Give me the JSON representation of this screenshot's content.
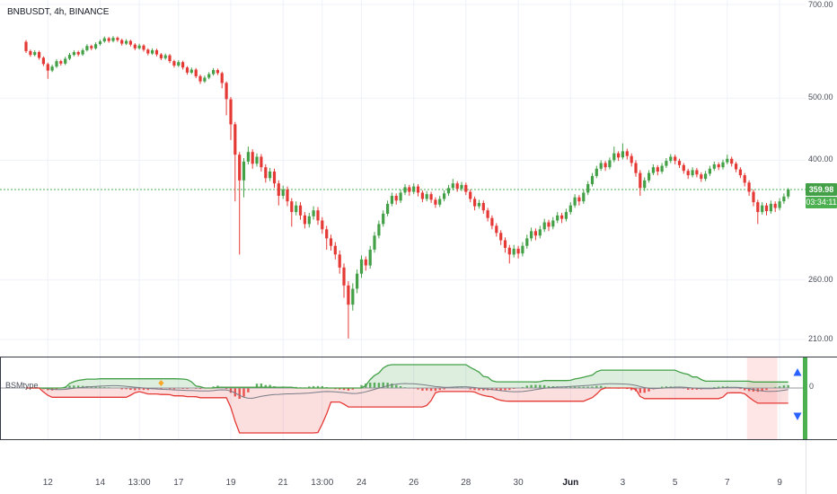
{
  "meta": {
    "title": "BNBUSDT, 4h, BINANCE"
  },
  "colors": {
    "up": "#43a047",
    "down": "#e53935",
    "accent": "#4caf50",
    "blue": "#2962ff",
    "grid": "#eef1f8",
    "zero_line": "#9598a1",
    "signal": "#787b86",
    "pink_band": "rgba(255,99,99,0.16)",
    "green_fill": "rgba(67,160,71,0.18)",
    "red_fill": "rgba(229,57,53,0.16)",
    "marker_yellow": "#f9a825"
  },
  "price_axis": {
    "labels": [
      {
        "text": "700.00",
        "price": 700
      },
      {
        "text": "500.00",
        "price": 500
      },
      {
        "text": "400.00",
        "price": 400
      },
      {
        "text": "260.00",
        "price": 260
      },
      {
        "text": "210.00",
        "price": 210
      }
    ],
    "current": {
      "text": "359.98",
      "price": 359.98,
      "countdown": "03:34:11"
    }
  },
  "time_axis": {
    "labels": [
      {
        "text": "12",
        "i": 5
      },
      {
        "text": "14",
        "i": 17
      },
      {
        "text": "13:00",
        "i": 26
      },
      {
        "text": "17",
        "i": 35
      },
      {
        "text": "19",
        "i": 47
      },
      {
        "text": "21",
        "i": 59
      },
      {
        "text": "13:00",
        "i": 68
      },
      {
        "text": "24",
        "i": 77
      },
      {
        "text": "26",
        "i": 89
      },
      {
        "text": "28",
        "i": 101
      },
      {
        "text": "30",
        "i": 113
      },
      {
        "text": "Jun",
        "i": 125,
        "month": true
      },
      {
        "text": "3",
        "i": 137
      },
      {
        "text": "5",
        "i": 149
      },
      {
        "text": "7",
        "i": 161
      },
      {
        "text": "9",
        "i": 173
      }
    ]
  },
  "indicator": {
    "label": "BSMtype",
    "zero_label": "0",
    "highlight_band": {
      "from_index": 165.5,
      "to_index": 172.5
    },
    "marker_index": 31
  },
  "chart_data": {
    "type": "candlestick",
    "symbol": "BNBUSDT",
    "interval": "4h",
    "exchange": "BINANCE",
    "price_scale": "log",
    "last_price": 359.98,
    "candles": [
      [
        612,
        616,
        588,
        592
      ],
      [
        592,
        595,
        580,
        584
      ],
      [
        584,
        594,
        581,
        590
      ],
      [
        590,
        593,
        574,
        578
      ],
      [
        578,
        581,
        561,
        565
      ],
      [
        565,
        568,
        536,
        552
      ],
      [
        552,
        564,
        549,
        560
      ],
      [
        560,
        575,
        557,
        571
      ],
      [
        571,
        574,
        562,
        566
      ],
      [
        566,
        580,
        563,
        576
      ],
      [
        576,
        588,
        573,
        584
      ],
      [
        584,
        594,
        581,
        590
      ],
      [
        590,
        593,
        581,
        585
      ],
      [
        585,
        598,
        582,
        594
      ],
      [
        594,
        607,
        591,
        603
      ],
      [
        603,
        606,
        594,
        598
      ],
      [
        598,
        611,
        595,
        607
      ],
      [
        607,
        617,
        604,
        613
      ],
      [
        613,
        624,
        610,
        620
      ],
      [
        620,
        623,
        610,
        614
      ],
      [
        614,
        625,
        611,
        621
      ],
      [
        621,
        624,
        612,
        616
      ],
      [
        616,
        619,
        604,
        608
      ],
      [
        608,
        618,
        605,
        614
      ],
      [
        614,
        617,
        602,
        606
      ],
      [
        606,
        609,
        594,
        598
      ],
      [
        598,
        608,
        595,
        604
      ],
      [
        604,
        607,
        591,
        595
      ],
      [
        595,
        598,
        583,
        587
      ],
      [
        587,
        598,
        584,
        594
      ],
      [
        594,
        597,
        581,
        585
      ],
      [
        585,
        588,
        573,
        577
      ],
      [
        577,
        587,
        574,
        583
      ],
      [
        583,
        586,
        567,
        571
      ],
      [
        571,
        574,
        558,
        562
      ],
      [
        562,
        573,
        559,
        569
      ],
      [
        569,
        572,
        554,
        558
      ],
      [
        558,
        561,
        544,
        548
      ],
      [
        548,
        558,
        545,
        554
      ],
      [
        554,
        557,
        537,
        541
      ],
      [
        541,
        544,
        526,
        531
      ],
      [
        531,
        542,
        528,
        538
      ],
      [
        538,
        549,
        535,
        545
      ],
      [
        545,
        557,
        542,
        553
      ],
      [
        553,
        556,
        543,
        547
      ],
      [
        547,
        550,
        518,
        528
      ],
      [
        528,
        531,
        470,
        498
      ],
      [
        498,
        502,
        430,
        455
      ],
      [
        455,
        459,
        345,
        408
      ],
      [
        408,
        412,
        285,
        372
      ],
      [
        372,
        403,
        350,
        398
      ],
      [
        398,
        420,
        394,
        412
      ],
      [
        412,
        416,
        388,
        395
      ],
      [
        395,
        410,
        391,
        405
      ],
      [
        405,
        409,
        384,
        390
      ],
      [
        390,
        394,
        369,
        375
      ],
      [
        375,
        389,
        371,
        384
      ],
      [
        384,
        388,
        362,
        368
      ],
      [
        368,
        372,
        340,
        352
      ],
      [
        352,
        365,
        348,
        360
      ],
      [
        360,
        364,
        339,
        345
      ],
      [
        345,
        349,
        315,
        332
      ],
      [
        332,
        345,
        328,
        340
      ],
      [
        340,
        344,
        323,
        328
      ],
      [
        328,
        332,
        313,
        318
      ],
      [
        318,
        331,
        314,
        327
      ],
      [
        327,
        339,
        323,
        334
      ],
      [
        334,
        338,
        317,
        322
      ],
      [
        322,
        326,
        307,
        312
      ],
      [
        312,
        316,
        290,
        302
      ],
      [
        302,
        306,
        289,
        294
      ],
      [
        294,
        298,
        280,
        285
      ],
      [
        285,
        289,
        266,
        272
      ],
      [
        272,
        276,
        244,
        255
      ],
      [
        255,
        259,
        210.7,
        238
      ],
      [
        238,
        257,
        233,
        252
      ],
      [
        252,
        270,
        248,
        266
      ],
      [
        266,
        284,
        262,
        280
      ],
      [
        280,
        283,
        269,
        274
      ],
      [
        274,
        294,
        271,
        290
      ],
      [
        290,
        309,
        287,
        305
      ],
      [
        305,
        322,
        302,
        318
      ],
      [
        318,
        334,
        315,
        330
      ],
      [
        330,
        346,
        327,
        342
      ],
      [
        342,
        356,
        339,
        352
      ],
      [
        352,
        355,
        341,
        346
      ],
      [
        346,
        360,
        343,
        356
      ],
      [
        356,
        367,
        353,
        363
      ],
      [
        363,
        366,
        352,
        357
      ],
      [
        357,
        368,
        354,
        364
      ],
      [
        364,
        367,
        351,
        356
      ],
      [
        356,
        359,
        344,
        348
      ],
      [
        348,
        358,
        345,
        354
      ],
      [
        354,
        357,
        343,
        347
      ],
      [
        347,
        350,
        337,
        341
      ],
      [
        341,
        352,
        338,
        348
      ],
      [
        348,
        359,
        345,
        355
      ],
      [
        355,
        366,
        352,
        362
      ],
      [
        362,
        374,
        359,
        368
      ],
      [
        368,
        371,
        357,
        361
      ],
      [
        361,
        370,
        358,
        366
      ],
      [
        366,
        369,
        353,
        357
      ],
      [
        357,
        360,
        344,
        348
      ],
      [
        348,
        351,
        334,
        339
      ],
      [
        339,
        347,
        336,
        343
      ],
      [
        343,
        346,
        330,
        334
      ],
      [
        334,
        337,
        321,
        325
      ],
      [
        325,
        328,
        312,
        316
      ],
      [
        316,
        319,
        304,
        308
      ],
      [
        308,
        311,
        295,
        300
      ],
      [
        300,
        303,
        287,
        292
      ],
      [
        292,
        295,
        276,
        285
      ],
      [
        285,
        295,
        282,
        291
      ],
      [
        291,
        294,
        281,
        286
      ],
      [
        286,
        298,
        283,
        294
      ],
      [
        294,
        306,
        291,
        302
      ],
      [
        302,
        314,
        299,
        310
      ],
      [
        310,
        313,
        300,
        305
      ],
      [
        305,
        316,
        302,
        312
      ],
      [
        312,
        324,
        309,
        320
      ],
      [
        320,
        323,
        310,
        315
      ],
      [
        315,
        326,
        312,
        322
      ],
      [
        322,
        332,
        319,
        328
      ],
      [
        328,
        331,
        319,
        324
      ],
      [
        324,
        336,
        321,
        332
      ],
      [
        332,
        344,
        329,
        340
      ],
      [
        340,
        354,
        337,
        350
      ],
      [
        350,
        353,
        340,
        345
      ],
      [
        345,
        360,
        342,
        356
      ],
      [
        356,
        371,
        353,
        367
      ],
      [
        367,
        382,
        364,
        378
      ],
      [
        378,
        392,
        375,
        388
      ],
      [
        388,
        400,
        385,
        396
      ],
      [
        396,
        399,
        385,
        390
      ],
      [
        390,
        404,
        387,
        400
      ],
      [
        400,
        420,
        397,
        410
      ],
      [
        410,
        413,
        399,
        404
      ],
      [
        404,
        425,
        401,
        413
      ],
      [
        413,
        417,
        401,
        406
      ],
      [
        406,
        410,
        391,
        396
      ],
      [
        396,
        400,
        377,
        382
      ],
      [
        382,
        386,
        352,
        362
      ],
      [
        362,
        376,
        358,
        372
      ],
      [
        372,
        386,
        369,
        382
      ],
      [
        382,
        394,
        379,
        390
      ],
      [
        390,
        393,
        379,
        384
      ],
      [
        384,
        396,
        381,
        392
      ],
      [
        392,
        403,
        389,
        399
      ],
      [
        399,
        409,
        396,
        405
      ],
      [
        405,
        408,
        394,
        399
      ],
      [
        399,
        402,
        389,
        393
      ],
      [
        393,
        396,
        381,
        385
      ],
      [
        385,
        388,
        374,
        379
      ],
      [
        379,
        390,
        376,
        386
      ],
      [
        386,
        389,
        376,
        380
      ],
      [
        380,
        383,
        370,
        374
      ],
      [
        374,
        385,
        371,
        381
      ],
      [
        381,
        392,
        378,
        388
      ],
      [
        388,
        398,
        385,
        394
      ],
      [
        394,
        397,
        386,
        390
      ],
      [
        390,
        401,
        387,
        397
      ],
      [
        397,
        408,
        394,
        402
      ],
      [
        402,
        405,
        391,
        395
      ],
      [
        395,
        398,
        383,
        387
      ],
      [
        387,
        390,
        375,
        379
      ],
      [
        379,
        382,
        364,
        369
      ],
      [
        369,
        372,
        352,
        357
      ],
      [
        357,
        360,
        339,
        344
      ],
      [
        344,
        347,
        318,
        332
      ],
      [
        332,
        344,
        329,
        340
      ],
      [
        340,
        343,
        328,
        333
      ],
      [
        333,
        346,
        330,
        342
      ],
      [
        342,
        345,
        332,
        337
      ],
      [
        337,
        349,
        334,
        345
      ],
      [
        345,
        355,
        342,
        351
      ],
      [
        351,
        362,
        348,
        359.98
      ]
    ]
  }
}
